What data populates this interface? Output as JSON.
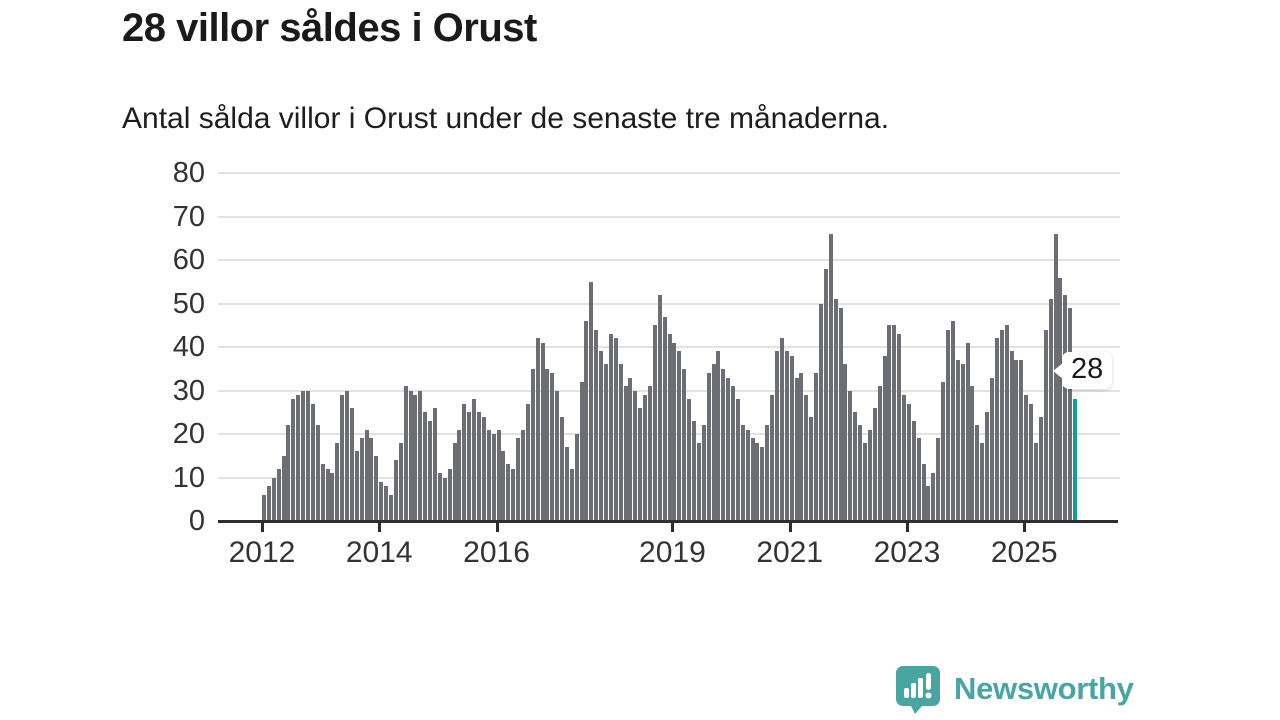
{
  "header": {
    "title": "28 villor såldes i Orust",
    "subtitle": "Antal sålda villor i Orust under de senaste tre månaderna."
  },
  "chart_data": {
    "type": "bar",
    "title": "28 villor såldes i Orust",
    "subtitle": "Antal sålda villor i Orust under de senaste tre månaderna.",
    "x_unit": "month",
    "x_start": "2012-01",
    "x_end": "2025-11",
    "values": [
      6,
      8,
      10,
      12,
      15,
      22,
      28,
      29,
      30,
      30,
      27,
      22,
      13,
      12,
      11,
      18,
      29,
      30,
      26,
      16,
      19,
      21,
      19,
      15,
      9,
      8,
      6,
      14,
      18,
      31,
      30,
      29,
      30,
      25,
      23,
      26,
      11,
      10,
      12,
      18,
      21,
      27,
      25,
      28,
      25,
      24,
      21,
      20,
      21,
      16,
      13,
      12,
      19,
      21,
      27,
      35,
      42,
      41,
      35,
      34,
      30,
      24,
      17,
      12,
      20,
      32,
      46,
      55,
      44,
      39,
      36,
      43,
      42,
      36,
      31,
      33,
      30,
      26,
      29,
      31,
      45,
      52,
      47,
      43,
      41,
      39,
      35,
      28,
      23,
      18,
      22,
      34,
      36,
      39,
      35,
      33,
      31,
      28,
      22,
      21,
      19,
      18,
      17,
      22,
      29,
      39,
      42,
      39,
      38,
      33,
      34,
      29,
      24,
      34,
      50,
      58,
      66,
      51,
      49,
      36,
      30,
      25,
      22,
      18,
      21,
      26,
      31,
      38,
      45,
      45,
      43,
      29,
      27,
      23,
      19,
      13,
      8,
      11,
      19,
      32,
      44,
      46,
      37,
      36,
      41,
      31,
      22,
      18,
      25,
      33,
      42,
      44,
      45,
      39,
      37,
      37,
      29,
      27,
      18,
      24,
      44,
      51,
      66,
      56,
      52,
      49,
      28
    ],
    "ylim": [
      0,
      80
    ],
    "y_ticks": [
      0,
      10,
      20,
      30,
      40,
      50,
      60,
      70,
      80
    ],
    "x_ticks": [
      {
        "label": "2012",
        "month_index": 0
      },
      {
        "label": "2014",
        "month_index": 24
      },
      {
        "label": "2016",
        "month_index": 48
      },
      {
        "label": "2019",
        "month_index": 84
      },
      {
        "label": "2021",
        "month_index": 108
      },
      {
        "label": "2023",
        "month_index": 132
      },
      {
        "label": "2025",
        "month_index": 156
      }
    ],
    "grid": "horizontal",
    "legend": "none",
    "bar_color": "#6d6d74",
    "highlight": {
      "index": 166,
      "value": 28,
      "label": "28",
      "color": "#0d9e9e"
    }
  },
  "footer": {
    "brand": "Newsworthy",
    "brand_color": "#48a6a2"
  }
}
